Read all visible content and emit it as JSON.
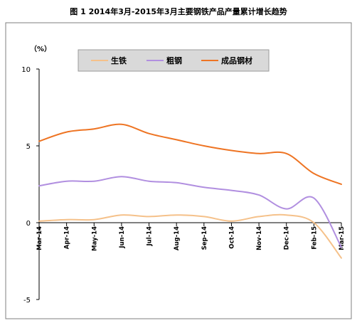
{
  "chart_data": {
    "type": "line",
    "title": "图 1  2014年3月-2015年3月主要钢铁产品产量累计增长趋势",
    "unit_label": "（%）",
    "categories": [
      "Mar-14",
      "Apr-14",
      "May-14",
      "Jun-14",
      "Jul-14",
      "Aug-14",
      "Sep-14",
      "Oct-14",
      "Nov-14",
      "Dec-14",
      "Feb-15",
      "Mar-15"
    ],
    "ylim": [
      -5,
      10
    ],
    "yticks": [
      "-5",
      "0",
      "5",
      "10"
    ],
    "legend_position": "top-center",
    "series": [
      {
        "name": "生铁",
        "color": "#f5c18a",
        "values": [
          0.1,
          0.2,
          0.2,
          0.5,
          0.4,
          0.5,
          0.4,
          0.1,
          0.4,
          0.5,
          0.0,
          -2.3
        ]
      },
      {
        "name": "粗钢",
        "color": "#b18fe0",
        "values": [
          2.4,
          2.7,
          2.7,
          3.0,
          2.7,
          2.6,
          2.3,
          2.1,
          1.8,
          0.9,
          1.6,
          -1.6
        ]
      },
      {
        "name": "成品钢材",
        "color": "#ee7423",
        "values": [
          5.3,
          5.9,
          6.1,
          6.4,
          5.8,
          5.4,
          5.0,
          4.7,
          4.5,
          4.5,
          3.2,
          2.5
        ]
      }
    ]
  }
}
